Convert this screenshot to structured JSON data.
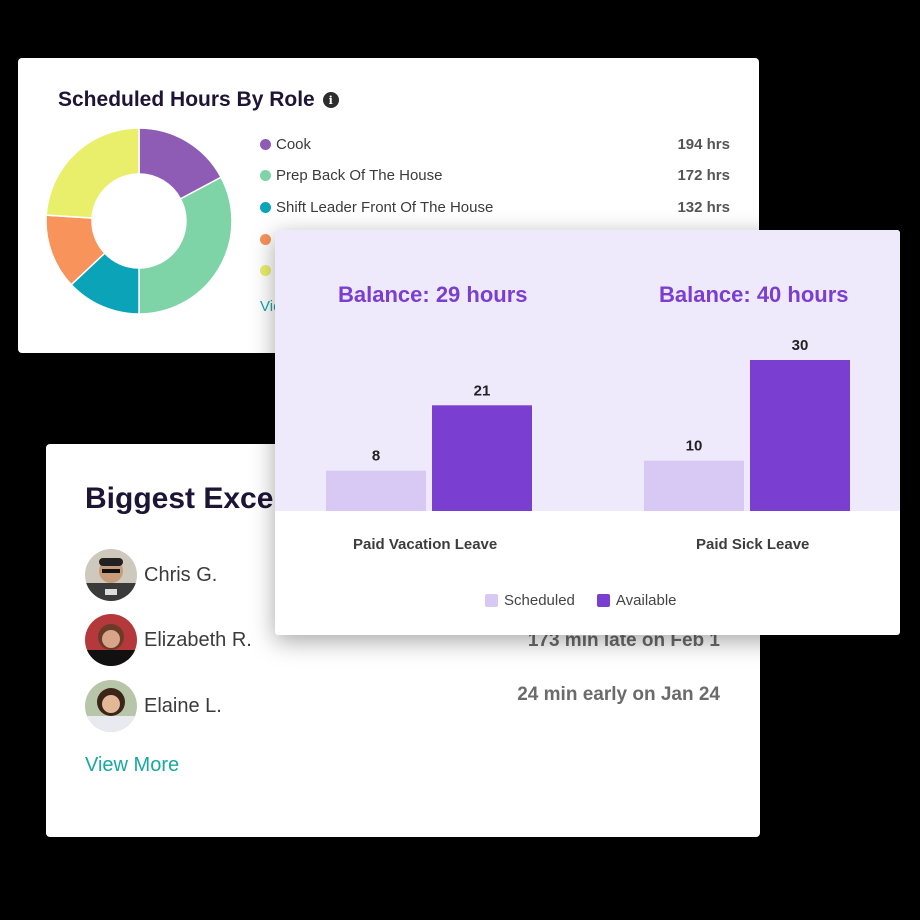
{
  "hours_card": {
    "title": "Scheduled Hours By Role",
    "roles": [
      {
        "name": "Cook",
        "value": "194 hrs",
        "color": "#8e5cb5"
      },
      {
        "name": "Prep Back Of The House",
        "value": "172 hrs",
        "color": "#7ed4a6"
      },
      {
        "name": "Shift Leader Front Of The House",
        "value": "132 hrs",
        "color": "#0aa3b8"
      },
      {
        "name": "",
        "value": "",
        "color": "#f7935b"
      },
      {
        "name": "",
        "value": "",
        "color": "#e9ef6a"
      }
    ],
    "view_link": "Vie",
    "donut": [
      {
        "fraction": 0.172,
        "color": "#8e5cb5"
      },
      {
        "fraction": 0.328,
        "color": "#7ed4a6"
      },
      {
        "fraction": 0.13,
        "color": "#0aa3b8"
      },
      {
        "fraction": 0.13,
        "color": "#f7935b"
      },
      {
        "fraction": 0.24,
        "color": "#e9ef6a"
      }
    ]
  },
  "exceptions_card": {
    "title": "Biggest Exce",
    "people": [
      {
        "name": "Chris G.",
        "status": ""
      },
      {
        "name": "Elizabeth R.",
        "status": "173 min late on Feb 1"
      },
      {
        "name": "Elaine L.",
        "status": "24 min early on Jan 24"
      }
    ],
    "view_more": "View More"
  },
  "leave_card": {
    "balances": [
      "Balance: 29 hours",
      "Balance: 40 hours"
    ],
    "legend": {
      "scheduled": "Scheduled",
      "available": "Available"
    }
  },
  "chart_data": {
    "type": "bar",
    "categories": [
      "Paid Vacation Leave",
      "Paid Sick Leave"
    ],
    "series": [
      {
        "name": "Scheduled",
        "values": [
          8,
          10
        ],
        "color": "#d7c9f3"
      },
      {
        "name": "Available",
        "values": [
          21,
          30
        ],
        "color": "#7a3fd0"
      }
    ],
    "ylim": [
      0,
      30
    ]
  }
}
